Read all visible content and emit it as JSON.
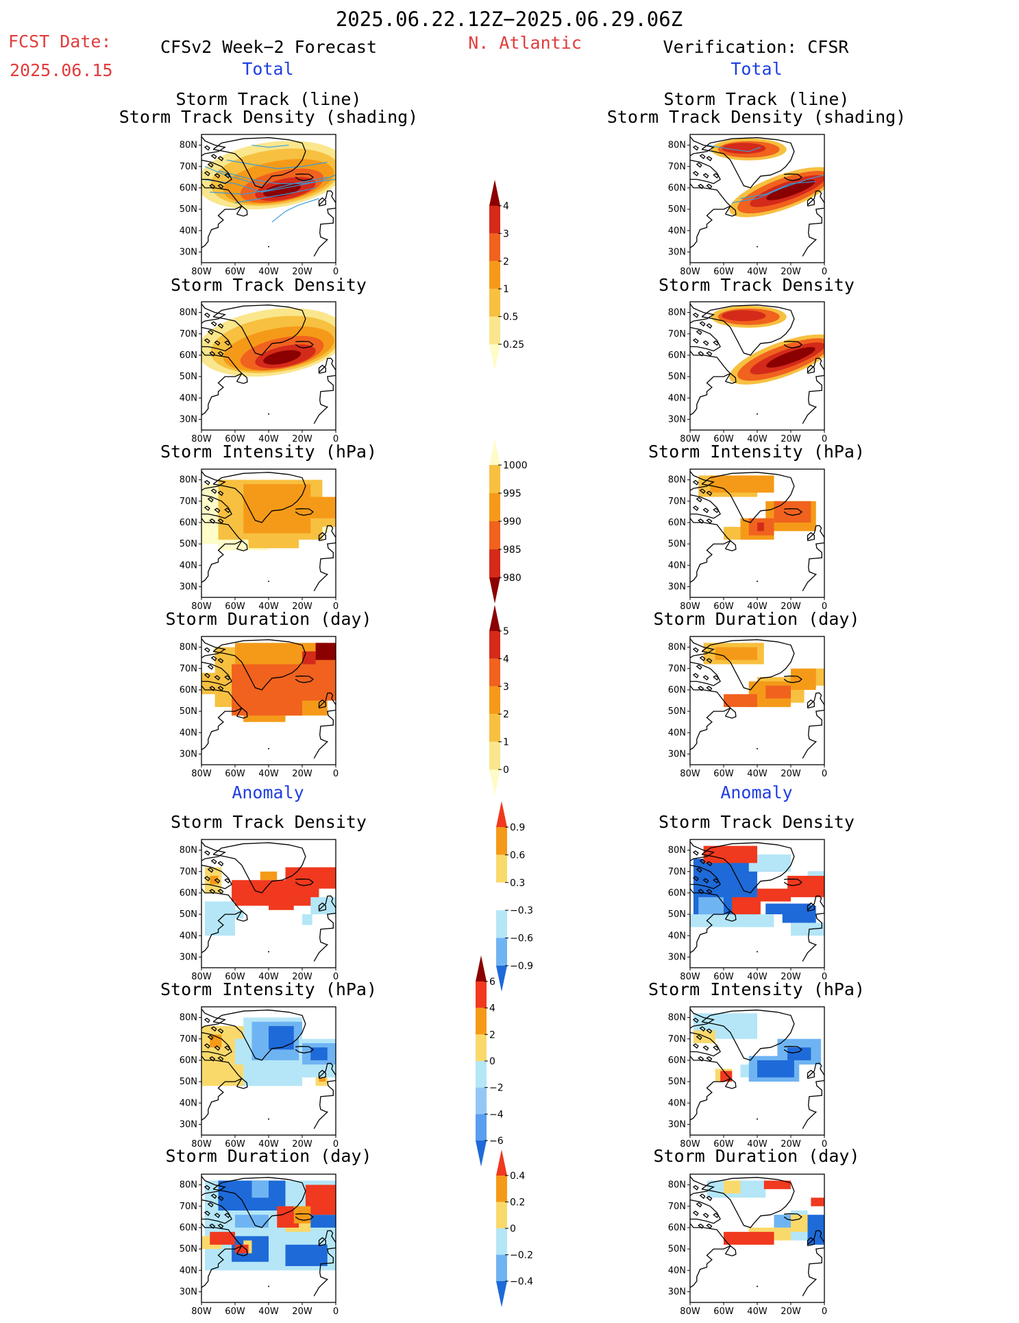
{
  "header": {
    "date_range": "2025.06.22.12Z−2025.06.29.06Z",
    "fcst_label": "FCST Date:",
    "fcst_date": "2025.06.15",
    "left_title": "CFSv2 Week−2 Forecast",
    "region": "N. Atlantic",
    "right_title": "Verification: CFSR"
  },
  "sections": {
    "total": "Total",
    "anomaly": "Anomaly"
  },
  "panel_titles": {
    "track_line": "Storm Track (line)",
    "track_shading": "Storm Track Density (shading)",
    "density": "Storm Track Density",
    "intensity": "Storm Intensity (hPa)",
    "duration": "Storm Duration (day)"
  },
  "axes": {
    "lat_labels": [
      "80N",
      "70N",
      "60N",
      "50N",
      "40N",
      "30N"
    ],
    "lon_labels": [
      "80W",
      "60W",
      "40W",
      "20W",
      "0"
    ]
  },
  "colorbars": {
    "density": {
      "labels": [
        "4",
        "3",
        "2",
        "1",
        "0.5",
        "0.25"
      ],
      "colors": [
        "#8b0000",
        "#d42a1a",
        "#f0621e",
        "#f59a18",
        "#f7c040",
        "#fae68c",
        "#fefcc8"
      ]
    },
    "intensity": {
      "labels": [
        "1000",
        "995",
        "990",
        "985",
        "980"
      ],
      "colors": [
        "#fefcc8",
        "#f7c040",
        "#f59a18",
        "#f0621e",
        "#d42a1a",
        "#8b0000"
      ]
    },
    "duration": {
      "labels": [
        "5",
        "4",
        "3",
        "2",
        "1",
        "0"
      ],
      "colors": [
        "#8b0000",
        "#d42a1a",
        "#f0621e",
        "#f59a18",
        "#f7c040",
        "#fae68c",
        "#fefcc8"
      ]
    },
    "anom_density": {
      "labels": [
        "0.9",
        "0.6",
        "0.3",
        "−0.3",
        "−0.6",
        "−0.9"
      ],
      "colors": [
        "#f0391e",
        "#f59a18",
        "#fad96b",
        "#ffffff",
        "#b4e6f7",
        "#6fb4f2",
        "#1e6ad8"
      ]
    },
    "anom_intensity": {
      "labels": [
        "6",
        "4",
        "2",
        "0",
        "−2",
        "−4",
        "−6"
      ],
      "colors": [
        "#8b0000",
        "#f0391e",
        "#f59a18",
        "#fad96b",
        "#b4e6f7",
        "#93c8f5",
        "#5a9ef0",
        "#1e6ad8"
      ]
    },
    "anom_duration": {
      "labels": [
        "0.4",
        "0.2",
        "0",
        "−0.2",
        "−0.4"
      ],
      "colors": [
        "#f0391e",
        "#f59a18",
        "#fad96b",
        "#b4e6f7",
        "#6fb4f2",
        "#1e6ad8"
      ]
    }
  },
  "colors": {
    "header_red": "#e23b3b",
    "header_blue": "#1f3fe0",
    "track_line": "#3a9bd8"
  }
}
